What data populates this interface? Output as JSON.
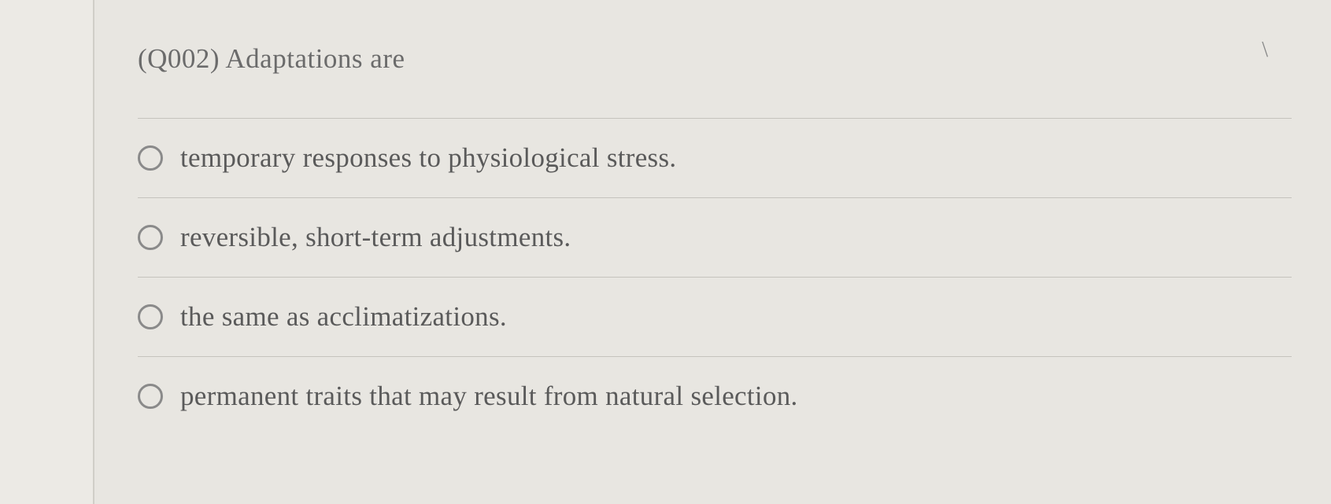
{
  "question": {
    "prompt": "(Q002) Adaptations are",
    "options": [
      {
        "label": "temporary responses to physiological stress."
      },
      {
        "label": "reversible, short-term adjustments."
      },
      {
        "label": "the same as acclimatizations."
      },
      {
        "label": "permanent traits that may result from natural selection."
      }
    ]
  },
  "styling": {
    "background_color": "#e8e6e1",
    "text_color": "#5a5a5a",
    "prompt_color": "#6b6b6b",
    "border_color": "#c5c3bd",
    "radio_border": "#8a8a8a",
    "left_margin_width": 120,
    "font_family": "Georgia, serif",
    "prompt_fontsize": 35,
    "option_fontsize": 35
  },
  "accent_mark": "\\"
}
